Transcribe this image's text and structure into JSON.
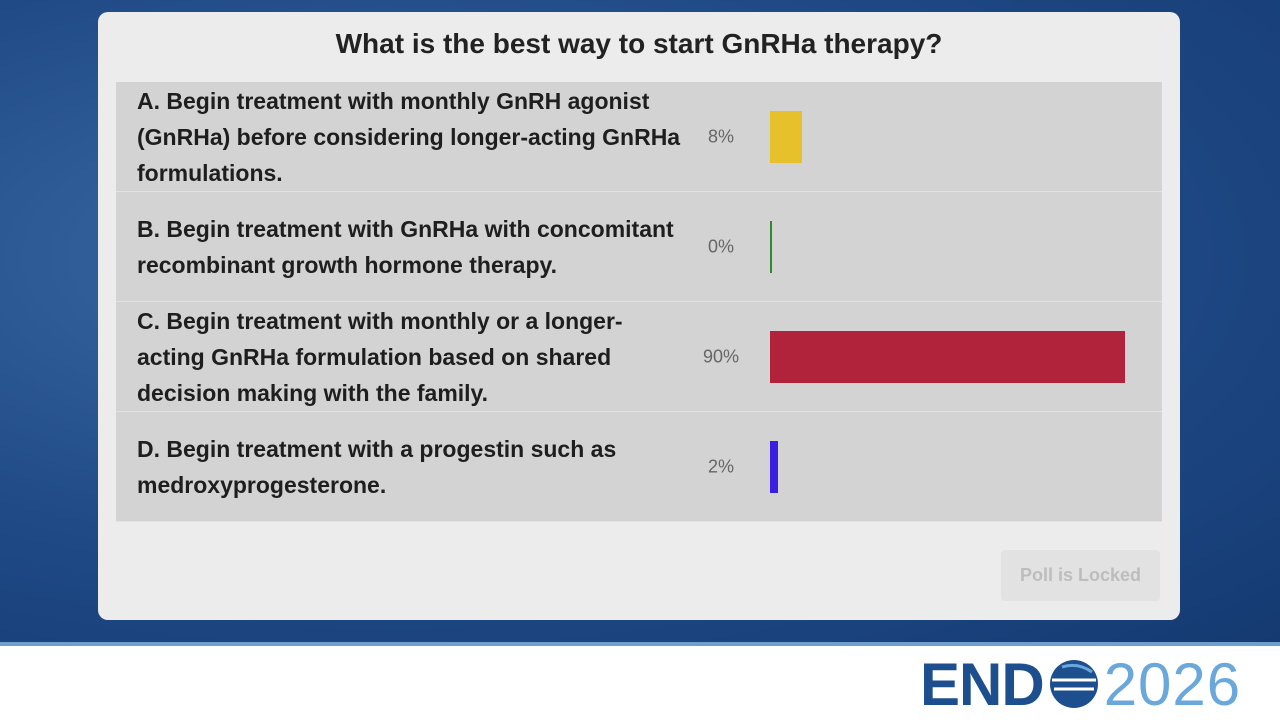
{
  "chart_data": {
    "type": "bar",
    "title": "What is the best way to start GnRHa therapy?",
    "categories": [
      "A. Begin treatment with monthly GnRH agonist (GnRHa) before considering longer-acting GnRHa formulations.",
      "B. Begin treatment with GnRHa with concomitant recombinant growth hormone therapy.",
      "C. Begin treatment with monthly or a longer-acting GnRHa formulation based on shared decision making with the family.",
      "D. Begin treatment with a progestin such as medroxyprogesterone."
    ],
    "values": [
      8,
      0,
      90,
      2
    ],
    "value_labels": [
      "8%",
      "0%",
      "90%",
      "2%"
    ],
    "colors": [
      "#e6c12c",
      "#2f8a34",
      "#b0233b",
      "#3b1fe0"
    ]
  },
  "button": "Poll is Locked",
  "logo": {
    "left": "END",
    "right": "2026"
  }
}
